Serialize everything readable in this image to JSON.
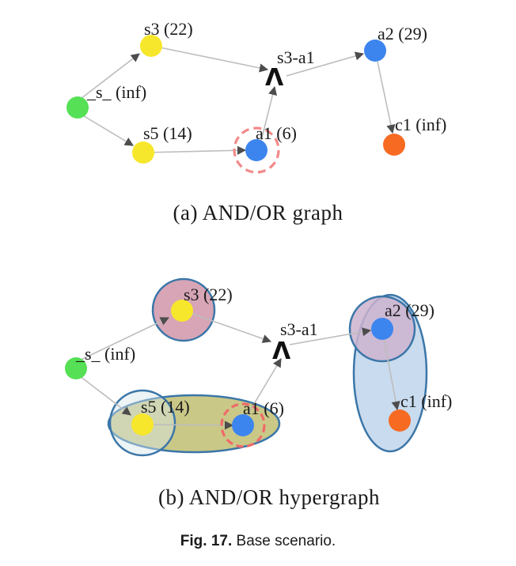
{
  "panel_a": {
    "subcaption": "(a) AND/OR graph",
    "nodes": {
      "s": "_s_ (inf)",
      "s3": "s3 (22)",
      "s5": "s5 (14)",
      "a1": "a1 (6)",
      "s3a1": "s3-a1",
      "a2": "a2 (29)",
      "c1": "c1 (inf)"
    },
    "and_symbol": "Λ"
  },
  "panel_b": {
    "subcaption": "(b) AND/OR hypergraph",
    "nodes": {
      "s": "_s_ (inf)",
      "s3": "s3 (22)",
      "s5": "s5 (14)",
      "a1": "a1 (6)",
      "s3a1": "s3-a1",
      "a2": "a2 (29)",
      "c1": "c1 (inf)"
    },
    "and_symbol": "Λ"
  },
  "caption": {
    "label": "Fig. 17.",
    "text": "Base scenario."
  },
  "colors": {
    "start": "#55e055",
    "yellow": "#f7e72c",
    "blue": "#3c85ee",
    "orange": "#f76a22",
    "dashed_ring": "#f28a8a",
    "edge": "#bdbdbd",
    "arrow": "#4d4d4d",
    "hyper_s3_fill": "#d7a5b6",
    "hyper_s5_fill": "#c4c27a",
    "hyper_a2c1_fill": "#c3d7ec",
    "hyper_border": "#3b76a8"
  }
}
